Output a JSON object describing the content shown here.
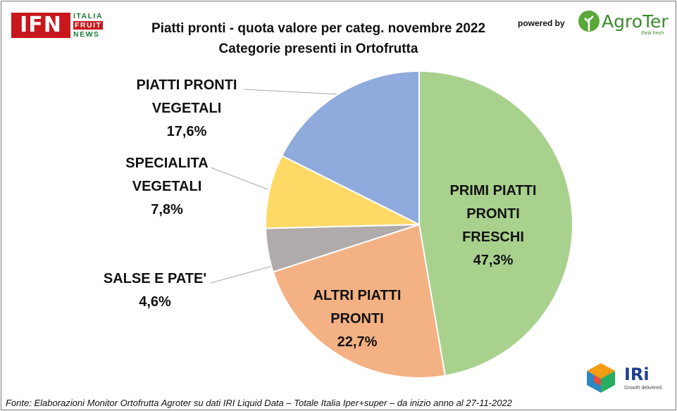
{
  "header": {
    "ifn_logo": {
      "abbr": "IFN",
      "words": [
        "ITALIA",
        "FRUIT",
        "NEWS"
      ]
    },
    "powered_by": "powered by",
    "agroter_logo": {
      "name": "AgroTer",
      "tagline": "think fresh"
    }
  },
  "chart_data": {
    "type": "pie",
    "title": "Piatti pronti - quota valore per categ. novembre 2022",
    "subtitle": "Categorie presenti in Ortofrutta",
    "slices": [
      {
        "label": [
          "PRIMI PIATTI",
          "PRONTI",
          "FRESCHI"
        ],
        "value": 47.3,
        "value_label": "47,3%",
        "color": "#a9d18e",
        "label_inside": true
      },
      {
        "label": [
          "ALTRI PIATTI",
          "PRONTI"
        ],
        "value": 22.7,
        "value_label": "22,7%",
        "color": "#f4b183",
        "label_inside": true
      },
      {
        "label": [
          "SALSE E PATE'"
        ],
        "value": 4.6,
        "value_label": "4,6%",
        "color": "#afabab",
        "label_inside": false
      },
      {
        "label": [
          "SPECIALITA",
          "VEGETALI"
        ],
        "value": 7.8,
        "value_label": "7,8%",
        "color": "#ffd966",
        "label_inside": false
      },
      {
        "label": [
          "PIATTI PRONTI",
          "VEGETALI"
        ],
        "value": 17.6,
        "value_label": "17,6%",
        "color": "#8faadc",
        "label_inside": false
      }
    ],
    "start_angle": "12 o'clock",
    "direction": "clockwise",
    "legend": "none"
  },
  "footer": {
    "source": "Fonte: Elaborazioni Monitor Ortofrutta Agroter su dati IRI Liquid Data – Totale Italia Iper+super –  da inizio anno al 27-11-2022"
  },
  "iri_logo": {
    "name": "IRi",
    "tagline": "Growth delivered."
  }
}
